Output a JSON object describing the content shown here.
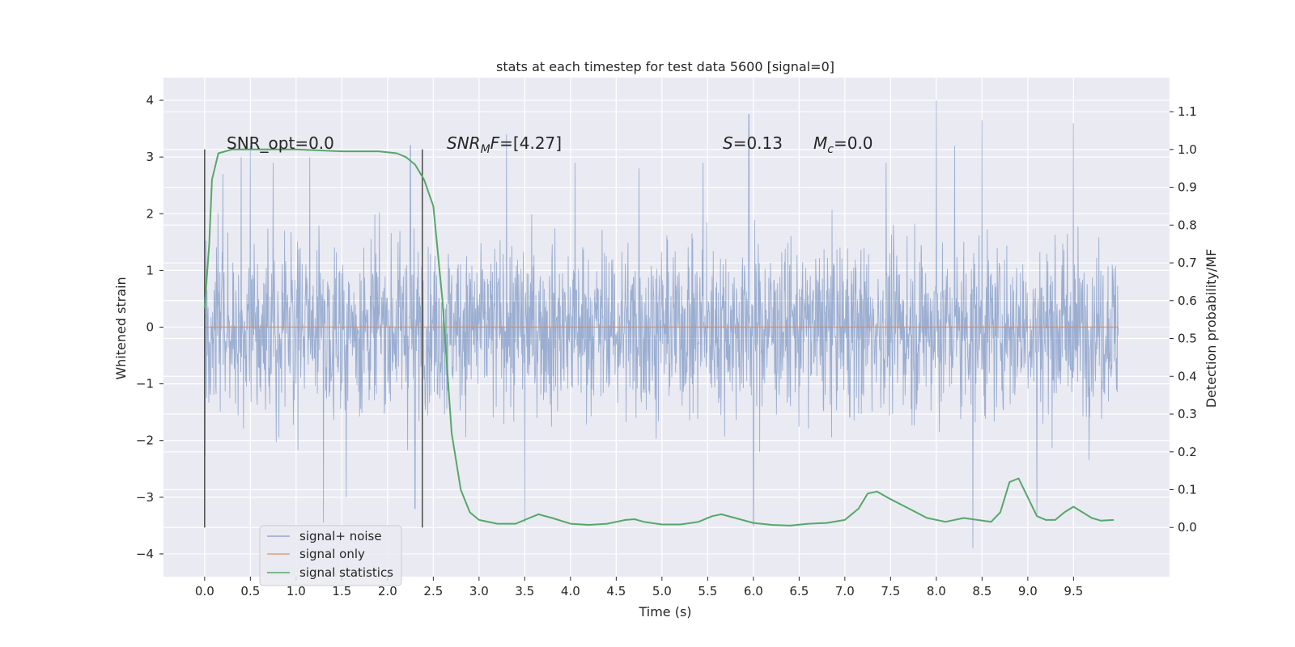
{
  "chart_data": {
    "type": "line",
    "title": "stats at each timestep for test data 5600 [signal=0]",
    "xlabel": "Time (s)",
    "ylabel": "Whitened strain",
    "ylabel_right": "Detection probability/MF",
    "xlim": [
      -0.45,
      10.55
    ],
    "ylim": [
      -4.4,
      4.4
    ],
    "ylim_right": [
      -0.13,
      1.19
    ],
    "x_ticks": [
      "0.0",
      "0.5",
      "1.0",
      "1.5",
      "2.0",
      "2.5",
      "3.0",
      "3.5",
      "4.0",
      "4.5",
      "5.0",
      "5.5",
      "6.0",
      "6.5",
      "7.0",
      "7.5",
      "8.0",
      "8.5",
      "9.0",
      "9.5"
    ],
    "y_ticks": [
      "4",
      "3",
      "2",
      "1",
      "0",
      "−1",
      "−2",
      "−3",
      "−4"
    ],
    "y_right_ticks": [
      "1.1",
      "1.0",
      "0.9",
      "0.8",
      "0.7",
      "0.6",
      "0.5",
      "0.4",
      "0.3",
      "0.2",
      "0.1",
      "0.0"
    ],
    "grid": true,
    "legend_position": "lower-left",
    "annotations": {
      "snr_opt": "SNR_opt=0.0",
      "snr_mf_italic": "SNR",
      "snr_mf_sub": "M",
      "snr_mf_f": "F",
      "snr_mf_value": "=[4.27]",
      "s_italic": "S",
      "s_value": "=0.13",
      "mc_italic": "M",
      "mc_sub": "c",
      "mc_value": "=0.0"
    },
    "vertical_markers": [
      0.0,
      2.38
    ],
    "series": [
      {
        "name": "signal+ noise",
        "color": "#4c72b0",
        "axis": "left",
        "t_start": 0.0,
        "t_end": 9.99,
        "rms": 0.95,
        "spikes": [
          [
            0.2,
            2.7
          ],
          [
            0.4,
            3.0
          ],
          [
            0.5,
            3.2
          ],
          [
            0.75,
            2.9
          ],
          [
            1.15,
            3.0
          ],
          [
            1.3,
            -3.45
          ],
          [
            1.55,
            -3.0
          ],
          [
            2.25,
            3.2
          ],
          [
            2.3,
            -3.2
          ],
          [
            3.3,
            3.4
          ],
          [
            3.5,
            -3.45
          ],
          [
            4.05,
            2.9
          ],
          [
            4.75,
            2.8
          ],
          [
            5.45,
            2.9
          ],
          [
            5.95,
            3.75
          ],
          [
            6.0,
            -3.5
          ],
          [
            7.45,
            2.9
          ],
          [
            8.0,
            4.05
          ],
          [
            8.2,
            3.2
          ],
          [
            8.4,
            -3.95
          ],
          [
            8.5,
            3.65
          ],
          [
            9.1,
            -3.3
          ],
          [
            9.5,
            3.6
          ]
        ]
      },
      {
        "name": "signal only",
        "color": "#dd8452",
        "axis": "left",
        "x": [
          0.0,
          9.99
        ],
        "y": [
          0.0,
          0.0
        ]
      },
      {
        "name": "signal statistics",
        "color": "#55a868",
        "axis": "right",
        "x": [
          0.0,
          0.05,
          0.08,
          0.15,
          0.3,
          0.6,
          1.0,
          1.5,
          1.9,
          2.1,
          2.2,
          2.3,
          2.4,
          2.5,
          2.6,
          2.7,
          2.8,
          2.9,
          3.0,
          3.2,
          3.4,
          3.55,
          3.65,
          3.8,
          4.0,
          4.2,
          4.4,
          4.6,
          4.7,
          4.8,
          5.0,
          5.2,
          5.4,
          5.55,
          5.65,
          5.8,
          6.0,
          6.2,
          6.4,
          6.6,
          6.8,
          7.0,
          7.15,
          7.25,
          7.35,
          7.5,
          7.7,
          7.9,
          8.1,
          8.3,
          8.45,
          8.6,
          8.7,
          8.8,
          8.9,
          9.0,
          9.1,
          9.2,
          9.3,
          9.4,
          9.5,
          9.6,
          9.7,
          9.8,
          9.94
        ],
        "y": [
          0.58,
          0.75,
          0.92,
          0.99,
          1.0,
          1.0,
          1.0,
          0.995,
          0.995,
          0.99,
          0.98,
          0.96,
          0.92,
          0.85,
          0.6,
          0.25,
          0.1,
          0.04,
          0.02,
          0.01,
          0.01,
          0.025,
          0.035,
          0.025,
          0.01,
          0.007,
          0.01,
          0.02,
          0.022,
          0.015,
          0.008,
          0.008,
          0.015,
          0.03,
          0.035,
          0.025,
          0.012,
          0.007,
          0.005,
          0.01,
          0.012,
          0.02,
          0.05,
          0.09,
          0.095,
          0.075,
          0.05,
          0.025,
          0.015,
          0.025,
          0.02,
          0.015,
          0.04,
          0.12,
          0.13,
          0.08,
          0.03,
          0.02,
          0.02,
          0.04,
          0.055,
          0.04,
          0.025,
          0.018,
          0.02
        ]
      }
    ]
  }
}
